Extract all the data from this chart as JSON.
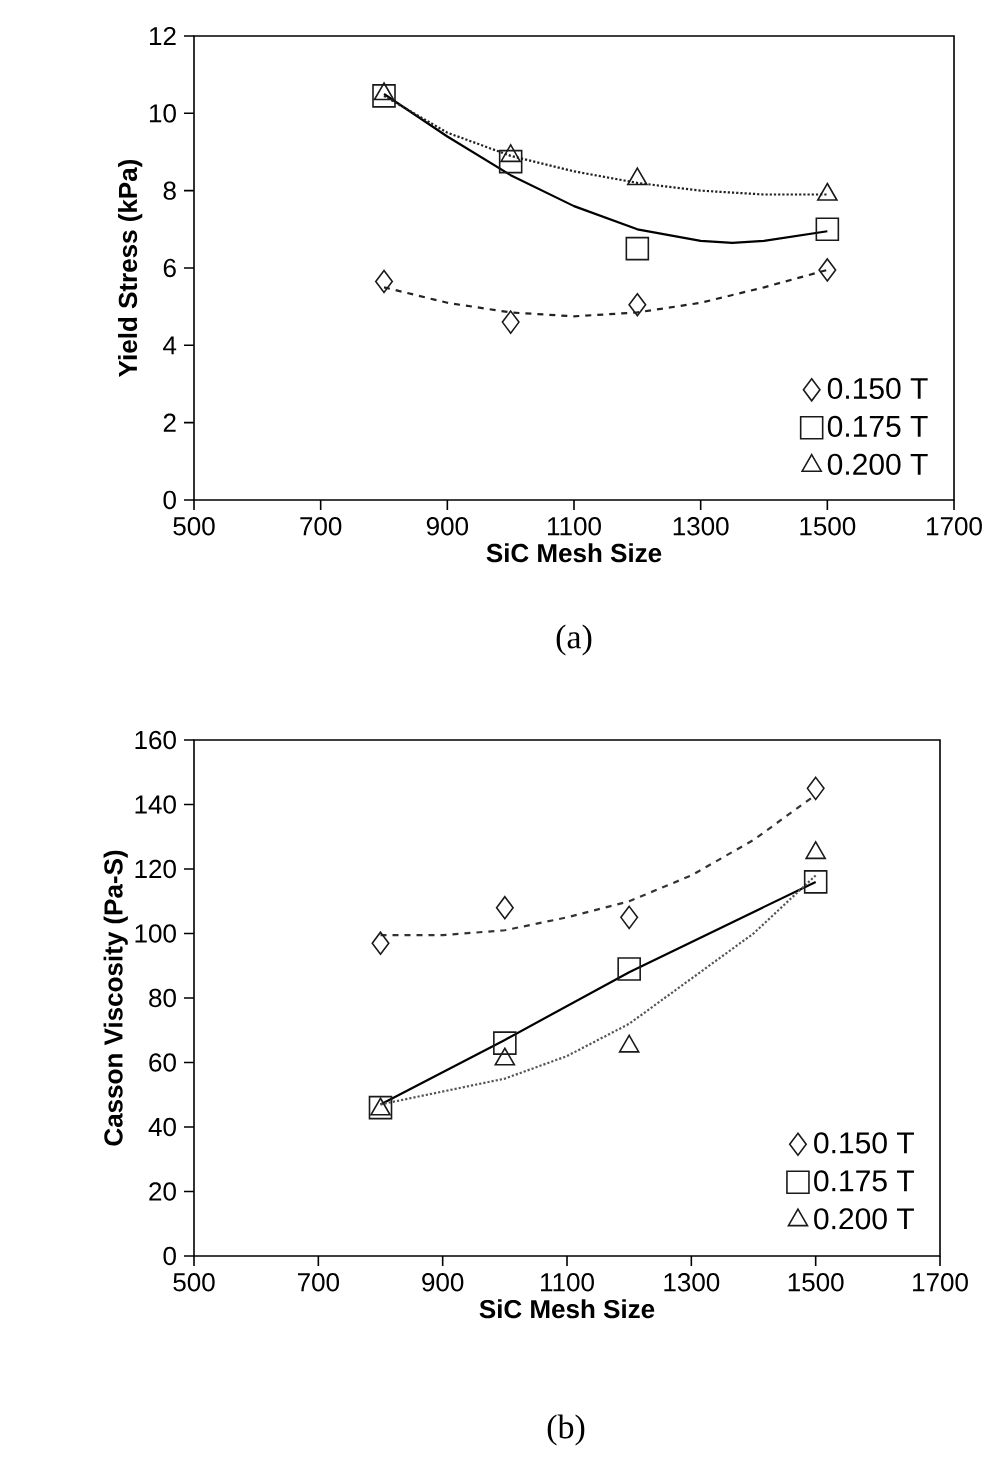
{
  "chart_data": [
    {
      "type": "scatter",
      "xlabel": "SiC Mesh Size",
      "ylabel": "Yield Stress (kPa)",
      "xlim": [
        500,
        1700
      ],
      "xticks": [
        500,
        700,
        900,
        1100,
        1300,
        1500,
        1700
      ],
      "ylim": [
        0,
        12
      ],
      "yticks": [
        0,
        2,
        4,
        6,
        8,
        10,
        12
      ],
      "legend": "bottom right",
      "annotations": [
        "(a)"
      ],
      "series": [
        {
          "name": "0.150 T",
          "type": "scatter",
          "marker": "diamond",
          "color": "#1a1a1a",
          "x": [
            800,
            1000,
            1200,
            1500
          ],
          "values": [
            5.65,
            4.6,
            5.05,
            5.95
          ]
        },
        {
          "name": "0.175 T",
          "type": "scatter",
          "marker": "square",
          "color": "#1a1a1a",
          "x": [
            800,
            1000,
            1200,
            1500
          ],
          "values": [
            10.45,
            8.75,
            6.5,
            7.0
          ]
        },
        {
          "name": "0.200 T",
          "type": "scatter",
          "marker": "triangle",
          "color": "#1a1a1a",
          "x": [
            800,
            1000,
            1200,
            1500
          ],
          "values": [
            10.5,
            8.9,
            8.3,
            7.9
          ]
        },
        {
          "type": "line",
          "line_style": "dashed",
          "color": "#222222",
          "x": [
            800,
            900,
            1000,
            1100,
            1200,
            1300,
            1400,
            1500
          ],
          "values": [
            5.5,
            5.1,
            4.85,
            4.75,
            4.85,
            5.1,
            5.5,
            5.95
          ]
        },
        {
          "type": "line",
          "line_style": "solid",
          "color": "#000000",
          "x": [
            800,
            900,
            1000,
            1100,
            1200,
            1300,
            1350,
            1400,
            1500
          ],
          "values": [
            10.5,
            9.4,
            8.4,
            7.6,
            7.0,
            6.7,
            6.65,
            6.7,
            6.95
          ]
        },
        {
          "type": "line",
          "line_style": "dotted",
          "color": "#222222",
          "x": [
            800,
            900,
            1000,
            1100,
            1200,
            1300,
            1400,
            1500
          ],
          "values": [
            10.45,
            9.5,
            8.9,
            8.5,
            8.2,
            8.0,
            7.9,
            7.9
          ]
        }
      ]
    },
    {
      "type": "scatter",
      "xlabel": "SiC Mesh Size",
      "ylabel": "Casson Viscosity (Pa-S)",
      "xlim": [
        500,
        1700
      ],
      "xticks": [
        500,
        700,
        900,
        1100,
        1300,
        1500,
        1700
      ],
      "ylim": [
        0,
        160
      ],
      "yticks": [
        0,
        20,
        40,
        60,
        80,
        100,
        120,
        140,
        160
      ],
      "legend": "bottom right",
      "annotations": [
        "(b)"
      ],
      "series": [
        {
          "name": "0.150 T",
          "type": "scatter",
          "marker": "diamond",
          "color": "#1a1a1a",
          "x": [
            800,
            1000,
            1200,
            1500
          ],
          "values": [
            97,
            108,
            105,
            145
          ]
        },
        {
          "name": "0.175 T",
          "type": "scatter",
          "marker": "square",
          "color": "#1a1a1a",
          "x": [
            800,
            1000,
            1200,
            1500
          ],
          "values": [
            46,
            66,
            89,
            116
          ]
        },
        {
          "name": "0.200 T",
          "type": "scatter",
          "marker": "triangle",
          "color": "#1a1a1a",
          "x": [
            800,
            1000,
            1200,
            1500
          ],
          "values": [
            45.5,
            61,
            65,
            125
          ]
        },
        {
          "type": "line",
          "line_style": "dashed",
          "color": "#333333",
          "x": [
            800,
            900,
            1000,
            1100,
            1200,
            1300,
            1400,
            1500
          ],
          "values": [
            99.5,
            99.5,
            101,
            105,
            110,
            118,
            129,
            143
          ]
        },
        {
          "type": "line",
          "line_style": "solid",
          "color": "#000000",
          "x": [
            800,
            1000,
            1200,
            1500
          ],
          "values": [
            47,
            67,
            88,
            116
          ]
        },
        {
          "type": "line",
          "line_style": "dotted",
          "color": "#555555",
          "x": [
            800,
            900,
            1000,
            1100,
            1200,
            1300,
            1400,
            1500
          ],
          "values": [
            47,
            51,
            55,
            62,
            72,
            86,
            100,
            118
          ]
        }
      ]
    }
  ]
}
